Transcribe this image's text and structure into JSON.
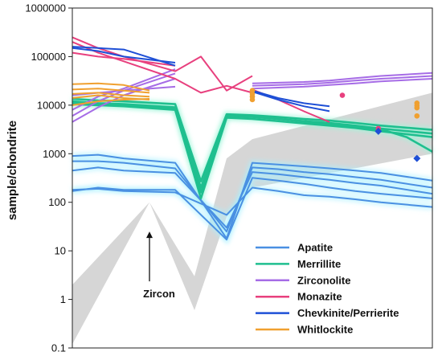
{
  "chart_data": {
    "type": "line",
    "title": "",
    "xlabel": "",
    "ylabel": "sample/chondrite",
    "yscale": "log",
    "ylim": [
      0.1,
      1000000
    ],
    "yticks": [
      "0.1",
      "1",
      "10",
      "100",
      "1000",
      "10000",
      "100000",
      "1000000"
    ],
    "xlim": [
      0,
      14
    ],
    "grid": false,
    "legend_position": "bottom-right",
    "legend": [
      {
        "label": "Apatite",
        "color": "#4a90e2"
      },
      {
        "label": "Merrillite",
        "color": "#1fbf8f"
      },
      {
        "label": "Zirconolite",
        "color": "#a66ce6"
      },
      {
        "label": "Monazite",
        "color": "#e8407e"
      },
      {
        "label": "Chevkinite/Perrierite",
        "color": "#1e4fd6"
      },
      {
        "label": "Whitlockite",
        "color": "#f0a030"
      }
    ],
    "annotation": {
      "label": "Zircon",
      "arrow_to": {
        "x": 3.0,
        "y": 25
      }
    },
    "zircon_band": {
      "x": [
        0,
        3,
        4.75,
        6,
        7,
        14
      ],
      "lower": [
        0.12,
        100,
        0.6,
        50,
        200,
        1000
      ],
      "upper": [
        2,
        100,
        3,
        800,
        2000,
        18000
      ]
    },
    "series": [
      {
        "group": "Apatite",
        "x": [
          0,
          1,
          2,
          4,
          6,
          7,
          8,
          9,
          10,
          11,
          12,
          14
        ],
        "y": [
          900,
          950,
          800,
          650,
          18,
          650,
          600,
          550,
          500,
          450,
          400,
          280
        ]
      },
      {
        "group": "Apatite",
        "x": [
          0,
          1,
          2,
          4,
          6,
          7,
          8,
          9,
          10,
          11,
          12,
          14
        ],
        "y": [
          700,
          700,
          650,
          500,
          25,
          520,
          480,
          420,
          380,
          330,
          290,
          200
        ]
      },
      {
        "group": "Apatite",
        "x": [
          0,
          1,
          2,
          4,
          6,
          7,
          8,
          9,
          10,
          11,
          12,
          14
        ],
        "y": [
          450,
          520,
          450,
          400,
          30,
          420,
          380,
          330,
          290,
          250,
          220,
          150
        ]
      },
      {
        "group": "Apatite",
        "x": [
          0,
          1,
          2,
          4,
          6,
          7,
          8,
          9,
          10,
          11,
          12,
          14
        ],
        "y": [
          170,
          200,
          180,
          180,
          17,
          320,
          280,
          240,
          200,
          170,
          150,
          120
        ]
      },
      {
        "group": "Apatite",
        "x": [
          0,
          1,
          2,
          4,
          6,
          7,
          8,
          9,
          10,
          11,
          12,
          14
        ],
        "y": [
          180,
          190,
          170,
          160,
          55,
          200,
          170,
          140,
          130,
          115,
          100,
          80
        ]
      },
      {
        "group": "Merrillite",
        "x": [
          0,
          1,
          2,
          4,
          5,
          6,
          7,
          8,
          9,
          10,
          11,
          12,
          14
        ],
        "y": [
          13500,
          12500,
          12000,
          10500,
          270,
          6500,
          6200,
          5700,
          5200,
          4800,
          4300,
          3800,
          3100
        ]
      },
      {
        "group": "Merrillite",
        "x": [
          0,
          1,
          2,
          4,
          5,
          6,
          7,
          8,
          9,
          10,
          11,
          12,
          14
        ],
        "y": [
          12000,
          11000,
          10500,
          9000,
          160,
          6000,
          5700,
          5200,
          4700,
          4300,
          3800,
          3300,
          2600
        ]
      },
      {
        "group": "Merrillite",
        "x": [
          0,
          1,
          2,
          4,
          5,
          6,
          7,
          8,
          9,
          10,
          11,
          12,
          14
        ],
        "y": [
          10500,
          10000,
          9500,
          8000,
          120,
          5500,
          5200,
          4700,
          4200,
          3800,
          3400,
          2900,
          2200
        ]
      },
      {
        "group": "Merrillite",
        "x": [
          0,
          1,
          2,
          4,
          5,
          6,
          7,
          8,
          9,
          10,
          11,
          12,
          13,
          14
        ],
        "y": [
          11000,
          10500,
          10000,
          8500,
          200,
          6200,
          5800,
          5200,
          4600,
          4100,
          3600,
          3200,
          2200,
          1100
        ]
      },
      {
        "group": "Zirconolite",
        "x": [
          0,
          1,
          2,
          4
        ],
        "y": [
          4500,
          9000,
          16000,
          35000
        ]
      },
      {
        "group": "Zirconolite",
        "x": [
          0,
          1,
          2,
          4
        ],
        "y": [
          6000,
          12000,
          20000,
          45000
        ]
      },
      {
        "group": "Zirconolite",
        "x": [
          0,
          1,
          2,
          4
        ],
        "y": [
          8000,
          15000,
          22000,
          55000
        ]
      },
      {
        "group": "Zirconolite",
        "x": [
          0,
          2,
          4
        ],
        "y": [
          16000,
          20000,
          24000
        ]
      },
      {
        "group": "Zirconolite",
        "x": [
          7,
          8,
          9,
          10,
          11,
          12,
          14
        ],
        "y": [
          28000,
          29000,
          30000,
          32000,
          36000,
          40000,
          46000
        ]
      },
      {
        "group": "Zirconolite",
        "x": [
          7,
          8,
          9,
          10,
          11,
          12,
          14
        ],
        "y": [
          25000,
          26000,
          27000,
          29000,
          32000,
          35000,
          40000
        ]
      },
      {
        "group": "Zirconolite",
        "x": [
          7,
          8,
          9,
          10,
          11,
          12,
          14
        ],
        "y": [
          22000,
          23000,
          24000,
          26000,
          28000,
          31000,
          35000
        ]
      },
      {
        "group": "Monazite",
        "x": [
          0,
          1,
          2,
          4,
          5,
          6,
          7
        ],
        "y": [
          250000,
          150000,
          100000,
          50000,
          100000,
          20000,
          40000
        ]
      },
      {
        "group": "Monazite",
        "x": [
          0,
          1,
          2,
          4,
          5,
          6,
          7
        ],
        "y": [
          200000,
          120000,
          80000,
          35000,
          18000,
          25000,
          18000
        ]
      },
      {
        "group": "Monazite",
        "x": [
          0,
          1,
          2,
          4
        ],
        "y": [
          120000,
          100000,
          90000,
          65000
        ]
      },
      {
        "group": "Monazite",
        "x": [
          7,
          8,
          9,
          10
        ],
        "y": [
          21000,
          13000,
          7500,
          4500
        ]
      },
      {
        "group": "Chevkinite/Perrierite",
        "x": [
          0,
          1,
          2,
          4
        ],
        "y": [
          160000,
          150000,
          140000,
          65000
        ]
      },
      {
        "group": "Chevkinite/Perrierite",
        "x": [
          0,
          1,
          2,
          4
        ],
        "y": [
          150000,
          130000,
          100000,
          75000
        ]
      },
      {
        "group": "Chevkinite/Perrierite",
        "x": [
          7,
          8,
          9,
          10
        ],
        "y": [
          20000,
          14000,
          11000,
          9500
        ]
      },
      {
        "group": "Chevkinite/Perrierite",
        "x": [
          7,
          8,
          9,
          10
        ],
        "y": [
          19000,
          13000,
          9500,
          7500
        ]
      },
      {
        "group": "Whitlockite",
        "x": [
          0,
          1,
          2,
          3
        ],
        "y": [
          27000,
          28000,
          26000,
          20000
        ]
      },
      {
        "group": "Whitlockite",
        "x": [
          0,
          1,
          2,
          3
        ],
        "y": [
          21000,
          22000,
          20000,
          18000
        ]
      },
      {
        "group": "Whitlockite",
        "x": [
          0,
          1,
          2,
          3
        ],
        "y": [
          17000,
          18000,
          16000,
          15000
        ]
      },
      {
        "group": "Whitlockite",
        "x": [
          0,
          1,
          2,
          3
        ],
        "y": [
          14000,
          16000,
          14000,
          13000
        ]
      },
      {
        "group": "Whitlockite",
        "x": [
          0,
          1,
          2,
          3
        ],
        "y": [
          10000,
          12000,
          13000,
          13500
        ]
      }
    ],
    "points": [
      {
        "group": "Whitlockite",
        "marker": "circle",
        "x": 7,
        "y": 20000
      },
      {
        "group": "Whitlockite",
        "marker": "circle",
        "x": 7,
        "y": 17000
      },
      {
        "group": "Whitlockite",
        "marker": "circle",
        "x": 7,
        "y": 15000
      },
      {
        "group": "Whitlockite",
        "marker": "circle",
        "x": 7,
        "y": 13000
      },
      {
        "group": "Whitlockite",
        "marker": "circle",
        "x": 13.4,
        "y": 11000
      },
      {
        "group": "Whitlockite",
        "marker": "circle",
        "x": 13.4,
        "y": 9800
      },
      {
        "group": "Whitlockite",
        "marker": "circle",
        "x": 13.4,
        "y": 8800
      },
      {
        "group": "Whitlockite",
        "marker": "circle",
        "x": 13.4,
        "y": 6000
      },
      {
        "group": "Monazite",
        "marker": "circle",
        "x": 10.5,
        "y": 16000
      },
      {
        "group": "Monazite",
        "marker": "circle",
        "x": 11.9,
        "y": 3300
      },
      {
        "group": "Chevkinite/Perrierite",
        "marker": "diamond",
        "x": 11.9,
        "y": 2900
      },
      {
        "group": "Chevkinite/Perrierite",
        "marker": "diamond",
        "x": 13.4,
        "y": 800
      }
    ]
  }
}
